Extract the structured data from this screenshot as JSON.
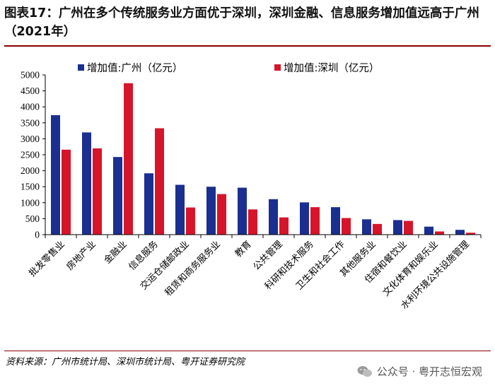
{
  "header": {
    "title": "图表17：广州在多个传统服务业方面优于深圳，深圳金融、信息服务增加值远高于广州（2021年）"
  },
  "footer": {
    "source": "资料来源：广州市统计局、深圳市统计局、粤开证券研究院",
    "watermark": "公众号 · 粤开志恒宏观"
  },
  "colors": {
    "guangzhou": "#1a2f8f",
    "shenzhen": "#d6152a",
    "accent_rule": "#8b0000"
  },
  "chart_data": {
    "type": "bar",
    "title": "",
    "xlabel": "",
    "ylabel": "",
    "ylim": [
      0,
      5000
    ],
    "ytick_step": 500,
    "yticks": [
      "0",
      "500",
      "1000",
      "1500",
      "2000",
      "2500",
      "3000",
      "3500",
      "4000",
      "4500",
      "5000"
    ],
    "legend_position": "top",
    "categories": [
      "批发零售业",
      "房地产业",
      "金融业",
      "信息服务",
      "交运仓储邮政业",
      "租赁和商务服务业",
      "教育",
      "公共管理",
      "科研和技术服务",
      "卫生和社会工作",
      "其他服务业",
      "住宿和餐饮业",
      "文化体育和娱乐业",
      "水利环境公共设施管理"
    ],
    "series": [
      {
        "name": "增加值:广州（亿元）",
        "color_key": "guangzhou",
        "values": [
          3740,
          3200,
          2430,
          1920,
          1560,
          1500,
          1470,
          1110,
          1010,
          860,
          480,
          455,
          250,
          150
        ]
      },
      {
        "name": "增加值:深圳（亿元）",
        "color_key": "shenzhen",
        "values": [
          2660,
          2700,
          4740,
          3330,
          850,
          1270,
          790,
          540,
          860,
          520,
          335,
          430,
          100,
          60
        ]
      }
    ]
  }
}
